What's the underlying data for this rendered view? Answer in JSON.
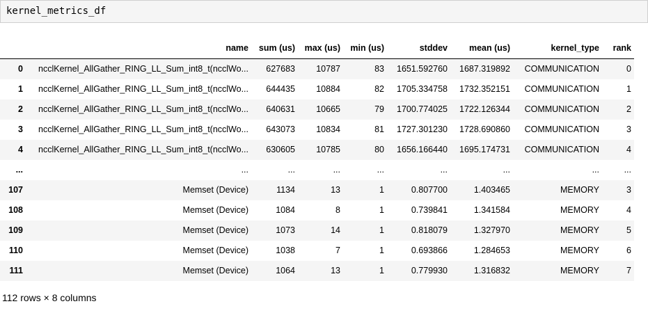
{
  "code_cell": {
    "text": "kernel_metrics_df"
  },
  "table": {
    "columns": [
      "name",
      "sum (us)",
      "max (us)",
      "min (us)",
      "stddev",
      "mean (us)",
      "kernel_type",
      "rank"
    ],
    "rows": [
      {
        "index": "0",
        "cells": [
          "ncclKernel_AllGather_RING_LL_Sum_int8_t(ncclWo...",
          "627683",
          "10787",
          "83",
          "1651.592760",
          "1687.319892",
          "COMMUNICATION",
          "0"
        ]
      },
      {
        "index": "1",
        "cells": [
          "ncclKernel_AllGather_RING_LL_Sum_int8_t(ncclWo...",
          "644435",
          "10884",
          "82",
          "1705.334758",
          "1732.352151",
          "COMMUNICATION",
          "1"
        ]
      },
      {
        "index": "2",
        "cells": [
          "ncclKernel_AllGather_RING_LL_Sum_int8_t(ncclWo...",
          "640631",
          "10665",
          "79",
          "1700.774025",
          "1722.126344",
          "COMMUNICATION",
          "2"
        ]
      },
      {
        "index": "3",
        "cells": [
          "ncclKernel_AllGather_RING_LL_Sum_int8_t(ncclWo...",
          "643073",
          "10834",
          "81",
          "1727.301230",
          "1728.690860",
          "COMMUNICATION",
          "3"
        ]
      },
      {
        "index": "4",
        "cells": [
          "ncclKernel_AllGather_RING_LL_Sum_int8_t(ncclWo...",
          "630605",
          "10785",
          "80",
          "1656.166440",
          "1695.174731",
          "COMMUNICATION",
          "4"
        ]
      },
      {
        "index": "...",
        "cells": [
          "...",
          "...",
          "...",
          "...",
          "...",
          "...",
          "...",
          "..."
        ]
      },
      {
        "index": "107",
        "cells": [
          "Memset (Device)",
          "1134",
          "13",
          "1",
          "0.807700",
          "1.403465",
          "MEMORY",
          "3"
        ]
      },
      {
        "index": "108",
        "cells": [
          "Memset (Device)",
          "1084",
          "8",
          "1",
          "0.739841",
          "1.341584",
          "MEMORY",
          "4"
        ]
      },
      {
        "index": "109",
        "cells": [
          "Memset (Device)",
          "1073",
          "14",
          "1",
          "0.818079",
          "1.327970",
          "MEMORY",
          "5"
        ]
      },
      {
        "index": "110",
        "cells": [
          "Memset (Device)",
          "1038",
          "7",
          "1",
          "0.693866",
          "1.284653",
          "MEMORY",
          "6"
        ]
      },
      {
        "index": "111",
        "cells": [
          "Memset (Device)",
          "1064",
          "13",
          "1",
          "0.779930",
          "1.316832",
          "MEMORY",
          "7"
        ]
      }
    ],
    "footer": "112 rows × 8 columns"
  },
  "colors": {
    "code_cell_bg": "#f5f5f5",
    "code_cell_border": "#cfcfcf",
    "row_stripe": "#f5f5f5",
    "header_rule": "#000000",
    "text": "#000000"
  }
}
